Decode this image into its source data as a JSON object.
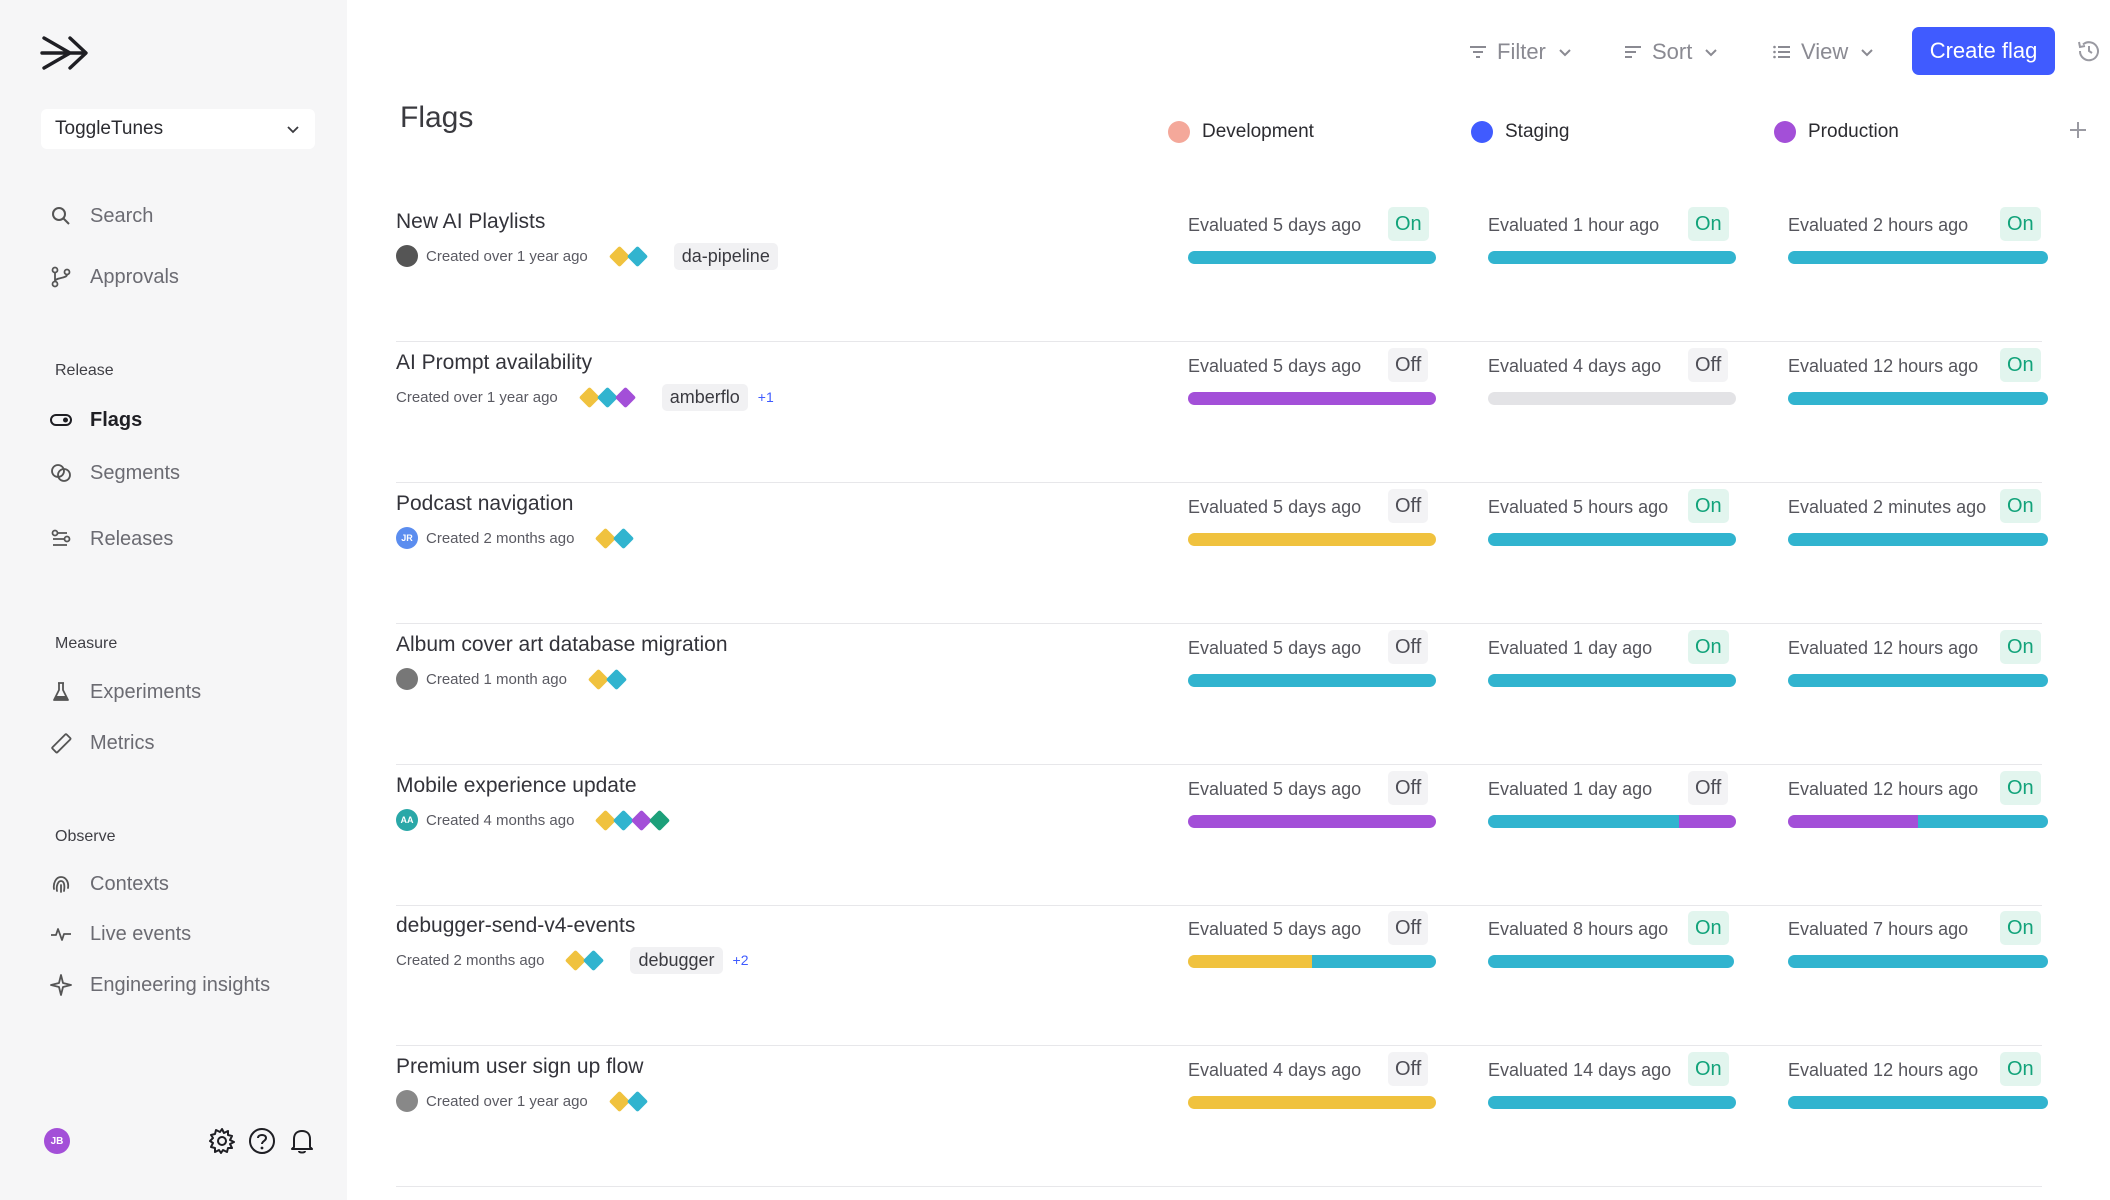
{
  "sidebar": {
    "project": "ToggleTunes",
    "search": "Search",
    "approvals": "Approvals",
    "release_label": "Release",
    "flags": "Flags",
    "segments": "Segments",
    "releases": "Releases",
    "measure_label": "Measure",
    "experiments": "Experiments",
    "metrics": "Metrics",
    "observe_label": "Observe",
    "contexts": "Contexts",
    "live_events": "Live events",
    "engineering_insights": "Engineering insights",
    "user_initials": "JB"
  },
  "toolbar": {
    "filter": "Filter",
    "sort": "Sort",
    "view": "View",
    "create_flag": "Create flag"
  },
  "page_title": "Flags",
  "environments": [
    {
      "name": "Development",
      "color": "#f4a89a"
    },
    {
      "name": "Staging",
      "color": "#405BFF"
    },
    {
      "name": "Production",
      "color": "#a34fd8"
    }
  ],
  "colors": {
    "teal": "#31b4cf",
    "purple": "#a34fd8",
    "yellow": "#f0c23e",
    "grey": "#e3e3e6",
    "green": "#1da07a"
  },
  "flags": [
    {
      "name": "New AI Playlists",
      "created": "Created over 1 year ago",
      "tag": "da-pipeline",
      "extra": "",
      "envs": [
        {
          "eval": "Evaluated 5 days ago",
          "status": "On",
          "bar": [
            [
              "teal",
              1
            ]
          ]
        },
        {
          "eval": "Evaluated 1 hour ago",
          "status": "On",
          "bar": [
            [
              "teal",
              1
            ]
          ]
        },
        {
          "eval": "Evaluated 2 hours ago",
          "status": "On",
          "bar": [
            [
              "teal",
              1
            ]
          ]
        }
      ]
    },
    {
      "name": "AI Prompt availability",
      "created": "Created over 1 year ago",
      "tag": "amberflo",
      "extra": "+1",
      "envs": [
        {
          "eval": "Evaluated 5 days ago",
          "status": "Off",
          "bar": [
            [
              "purple",
              1
            ]
          ]
        },
        {
          "eval": "Evaluated 4 days ago",
          "status": "Off",
          "bar": [
            [
              "grey",
              1
            ]
          ]
        },
        {
          "eval": "Evaluated 12 hours ago",
          "status": "On",
          "bar": [
            [
              "teal",
              1
            ]
          ]
        }
      ]
    },
    {
      "name": "Podcast navigation",
      "created": "Created 2 months ago",
      "avatar_initials": "JR",
      "tag": "",
      "extra": "",
      "envs": [
        {
          "eval": "Evaluated 5 days ago",
          "status": "Off",
          "bar": [
            [
              "yellow",
              1
            ]
          ]
        },
        {
          "eval": "Evaluated 5 hours ago",
          "status": "On",
          "bar": [
            [
              "teal",
              1
            ]
          ]
        },
        {
          "eval": "Evaluated 2 minutes ago",
          "status": "On",
          "bar": [
            [
              "teal",
              1
            ]
          ]
        }
      ]
    },
    {
      "name": "Album cover art database migration",
      "created": "Created 1 month ago",
      "tag": "",
      "extra": "",
      "envs": [
        {
          "eval": "Evaluated 5 days ago",
          "status": "Off",
          "bar": [
            [
              "teal",
              1
            ]
          ]
        },
        {
          "eval": "Evaluated 1 day ago",
          "status": "On",
          "bar": [
            [
              "teal",
              1
            ]
          ]
        },
        {
          "eval": "Evaluated 12 hours ago",
          "status": "On",
          "bar": [
            [
              "teal",
              1
            ]
          ]
        }
      ]
    },
    {
      "name": "Mobile experience update",
      "created": "Created 4 months ago",
      "avatar_initials": "AA",
      "tag": "",
      "extra": "",
      "envs": [
        {
          "eval": "Evaluated 5 days ago",
          "status": "Off",
          "bar": [
            [
              "purple",
              1
            ]
          ]
        },
        {
          "eval": "Evaluated 1 day ago",
          "status": "Off",
          "bar": [
            [
              "teal",
              0.77
            ],
            [
              "purple",
              0.23
            ]
          ]
        },
        {
          "eval": "Evaluated 12 hours ago",
          "status": "On",
          "bar": [
            [
              "purple",
              0.5
            ],
            [
              "teal",
              0.5
            ]
          ]
        }
      ]
    },
    {
      "name": "debugger-send-v4-events",
      "created": "Created 2 months ago",
      "tag": "debugger",
      "extra": "+2",
      "envs": [
        {
          "eval": "Evaluated 5 days ago",
          "status": "Off",
          "bar": [
            [
              "yellow",
              0.5
            ],
            [
              "teal",
              0.5
            ]
          ]
        },
        {
          "eval": "Evaluated 8 hours ago",
          "status": "On",
          "bar": [
            [
              "teal",
              1
            ]
          ]
        },
        {
          "eval": "Evaluated 7 hours ago",
          "status": "On",
          "bar": [
            [
              "teal",
              1
            ]
          ]
        }
      ]
    },
    {
      "name": "Premium user sign up flow",
      "created": "Created over 1 year ago",
      "tag": "",
      "extra": "",
      "envs": [
        {
          "eval": "Evaluated 4 days ago",
          "status": "Off",
          "bar": [
            [
              "yellow",
              1
            ]
          ]
        },
        {
          "eval": "Evaluated 14 days ago",
          "status": "On",
          "bar": [
            [
              "teal",
              1
            ]
          ]
        },
        {
          "eval": "Evaluated 12 hours ago",
          "status": "On",
          "bar": [
            [
              "teal",
              1
            ]
          ]
        }
      ]
    }
  ]
}
